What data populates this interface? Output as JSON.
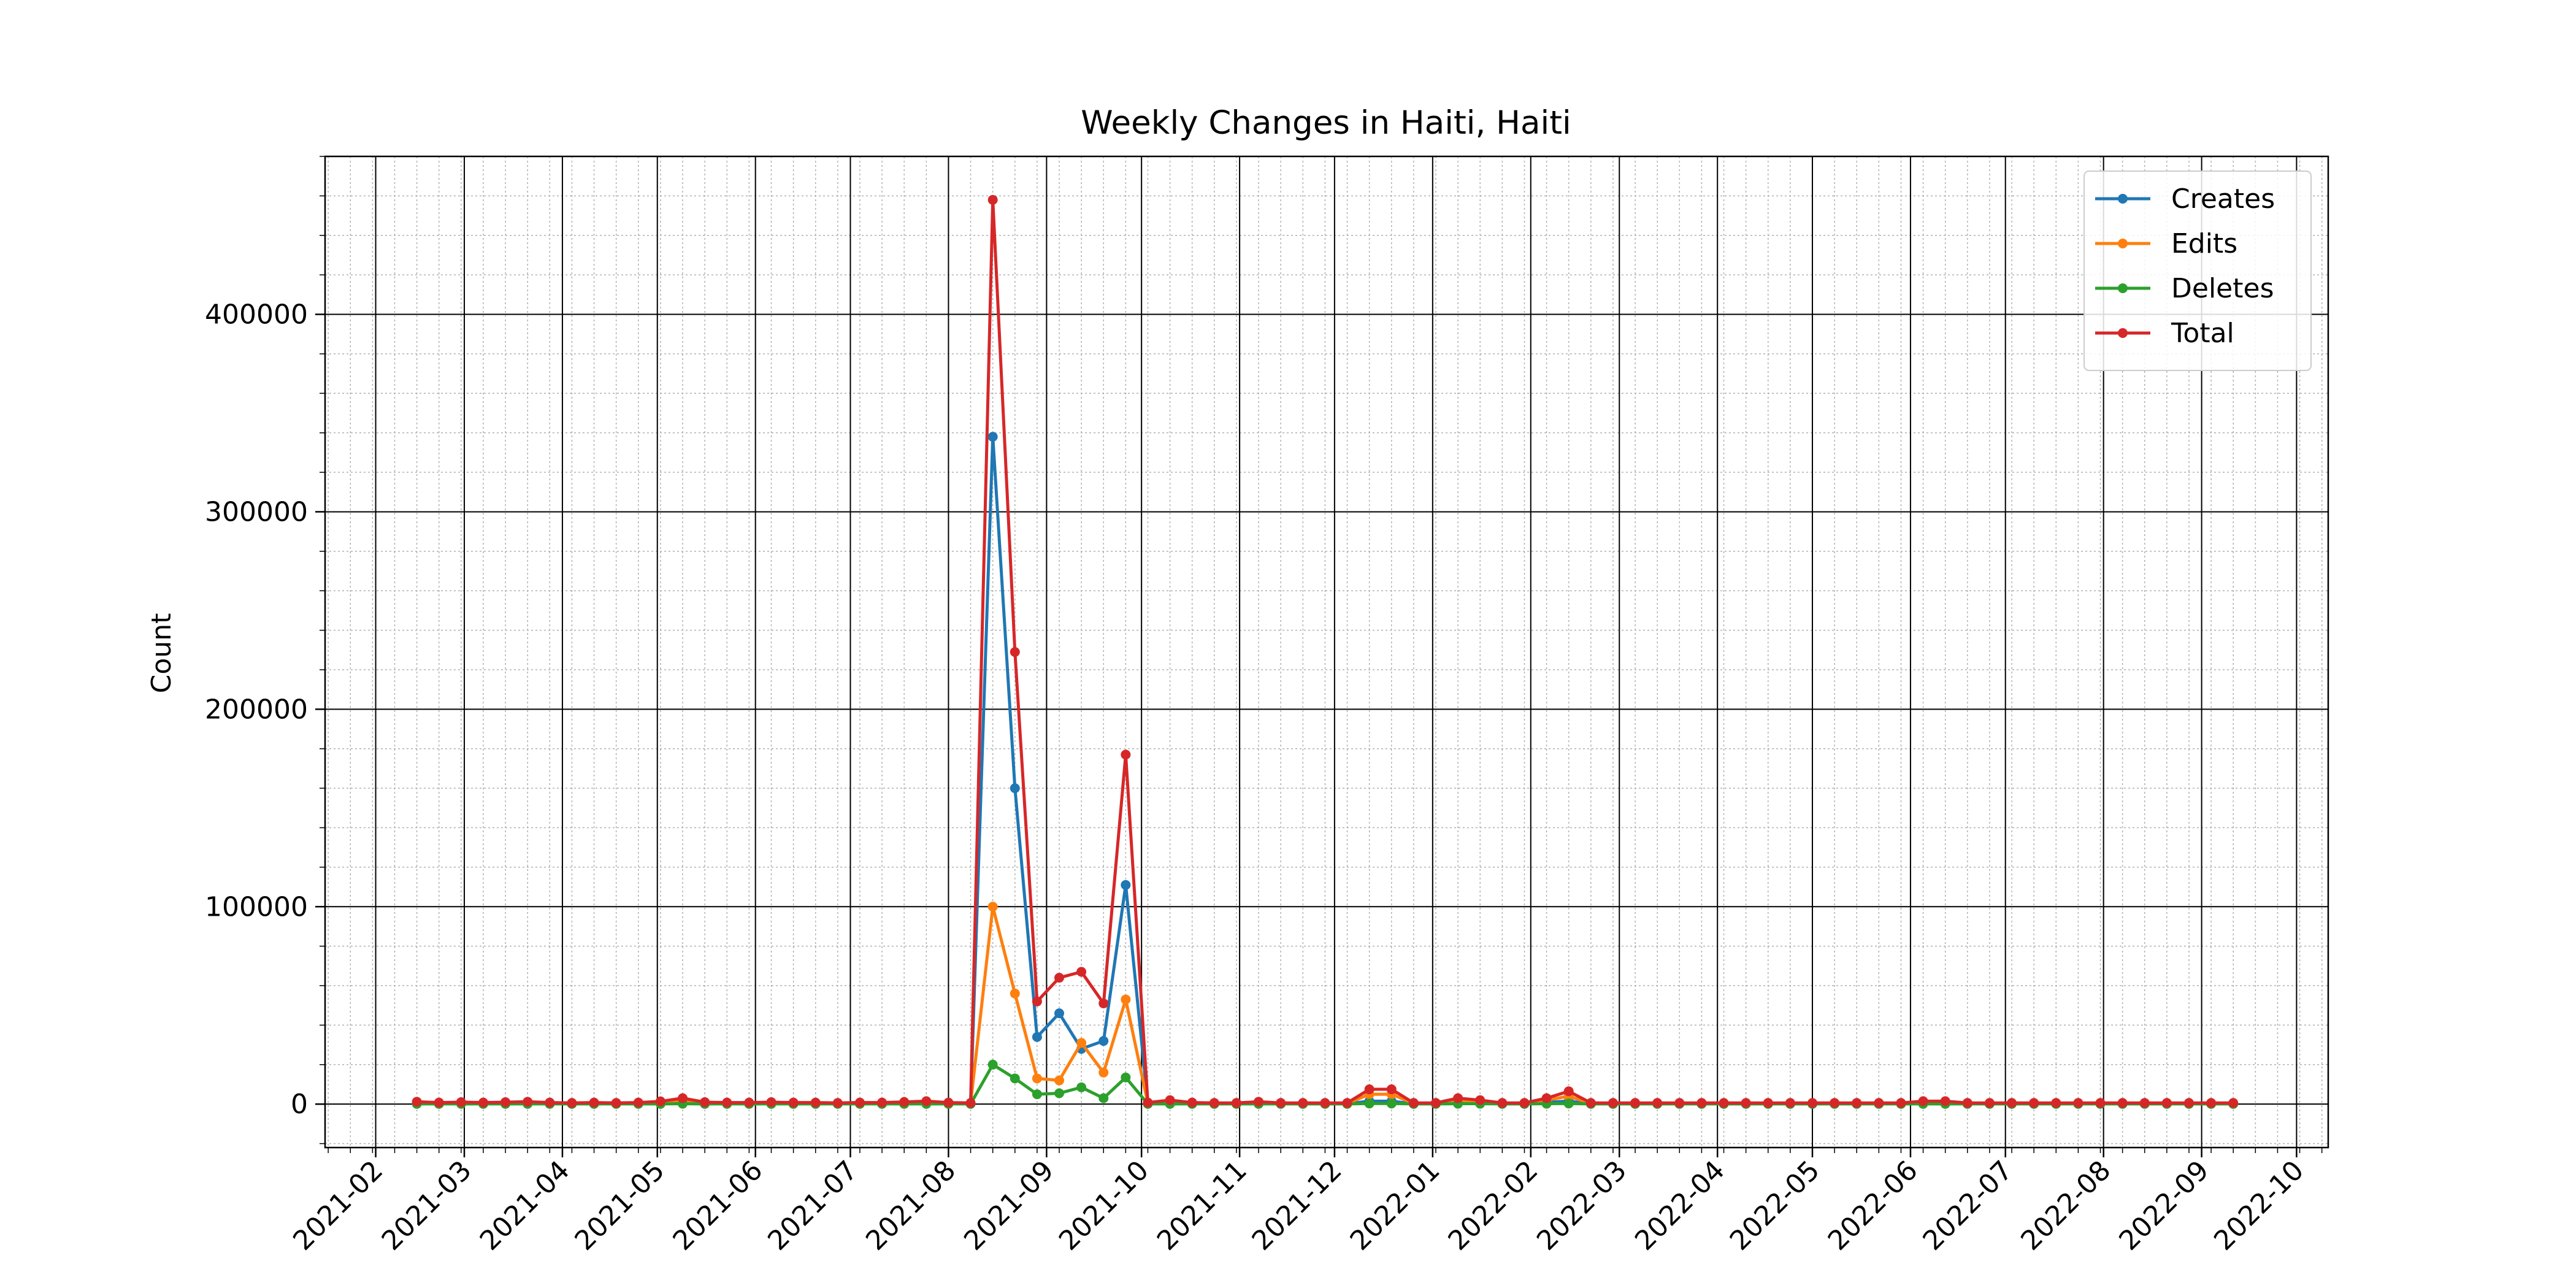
{
  "chart_data": {
    "type": "line",
    "title": "Weekly Changes in Haiti, Haiti",
    "xlabel": "",
    "ylabel": "Count",
    "x_type": "date",
    "xlim": [
      "2021-01-16",
      "2022-10-11"
    ],
    "ylim": [
      -22000,
      480000
    ],
    "x_ticks": [
      "2021-02",
      "2021-03",
      "2021-04",
      "2021-05",
      "2021-06",
      "2021-07",
      "2021-08",
      "2021-09",
      "2021-10",
      "2021-11",
      "2021-12",
      "2022-01",
      "2022-02",
      "2022-03",
      "2022-04",
      "2022-05",
      "2022-06",
      "2022-07",
      "2022-08",
      "2022-09",
      "2022-10"
    ],
    "y_ticks": [
      "0",
      "100000",
      "200000",
      "300000",
      "400000"
    ],
    "grid": "major and minor",
    "legend_position": "top-right",
    "x": [
      "2021-02-14",
      "2021-02-21",
      "2021-02-28",
      "2021-03-07",
      "2021-03-14",
      "2021-03-21",
      "2021-03-28",
      "2021-04-04",
      "2021-04-11",
      "2021-04-18",
      "2021-04-25",
      "2021-05-02",
      "2021-05-09",
      "2021-05-16",
      "2021-05-23",
      "2021-05-30",
      "2021-06-06",
      "2021-06-13",
      "2021-06-20",
      "2021-06-27",
      "2021-07-04",
      "2021-07-11",
      "2021-07-18",
      "2021-07-25",
      "2021-08-01",
      "2021-08-08",
      "2021-08-15",
      "2021-08-22",
      "2021-08-29",
      "2021-09-05",
      "2021-09-12",
      "2021-09-19",
      "2021-09-26",
      "2021-10-03",
      "2021-10-10",
      "2021-10-17",
      "2021-10-24",
      "2021-10-31",
      "2021-11-07",
      "2021-11-14",
      "2021-11-21",
      "2021-11-28",
      "2021-12-05",
      "2021-12-12",
      "2021-12-19",
      "2021-12-26",
      "2022-01-02",
      "2022-01-09",
      "2022-01-16",
      "2022-01-23",
      "2022-01-30",
      "2022-02-06",
      "2022-02-13",
      "2022-02-20",
      "2022-02-27",
      "2022-03-06",
      "2022-03-13",
      "2022-03-20",
      "2022-03-27",
      "2022-04-03",
      "2022-04-10",
      "2022-04-17",
      "2022-04-24",
      "2022-05-01",
      "2022-05-08",
      "2022-05-15",
      "2022-05-22",
      "2022-05-29",
      "2022-06-05",
      "2022-06-12",
      "2022-06-19",
      "2022-06-26",
      "2022-07-03",
      "2022-07-10",
      "2022-07-17",
      "2022-07-24",
      "2022-07-31",
      "2022-08-07",
      "2022-08-14",
      "2022-08-21",
      "2022-08-28",
      "2022-09-04",
      "2022-09-11"
    ],
    "series": [
      {
        "name": "Creates",
        "color": "#1f77b4",
        "values": [
          500,
          300,
          400,
          300,
          400,
          500,
          300,
          200,
          300,
          200,
          300,
          600,
          1200,
          400,
          300,
          300,
          400,
          300,
          300,
          200,
          300,
          300,
          400,
          600,
          300,
          200,
          338000,
          160000,
          34000,
          46000,
          28000,
          32000,
          111000,
          300,
          800,
          300,
          200,
          200,
          400,
          200,
          200,
          200,
          200,
          1500,
          1500,
          200,
          200,
          1000,
          800,
          200,
          200,
          1000,
          1500,
          200,
          200,
          200,
          200,
          200,
          200,
          200,
          200,
          200,
          200,
          200,
          200,
          200,
          200,
          200,
          500,
          500,
          200,
          200,
          200,
          200,
          200,
          200,
          200,
          200,
          200,
          200,
          200,
          200,
          200
        ]
      },
      {
        "name": "Edits",
        "color": "#ff7f0e",
        "values": [
          600,
          400,
          500,
          400,
          500,
          600,
          400,
          300,
          400,
          300,
          400,
          700,
          1500,
          500,
          400,
          400,
          500,
          400,
          400,
          300,
          400,
          400,
          600,
          800,
          400,
          300,
          100000,
          56000,
          13000,
          12000,
          31000,
          16000,
          53000,
          400,
          1000,
          400,
          300,
          300,
          700,
          300,
          300,
          300,
          300,
          5000,
          5000,
          300,
          300,
          1500,
          1000,
          300,
          300,
          2000,
          4000,
          300,
          300,
          300,
          300,
          300,
          300,
          300,
          300,
          300,
          300,
          300,
          300,
          300,
          300,
          300,
          800,
          800,
          300,
          300,
          300,
          300,
          300,
          300,
          300,
          300,
          300,
          300,
          300,
          300,
          300
        ]
      },
      {
        "name": "Deletes",
        "color": "#2ca02c",
        "values": [
          100,
          100,
          100,
          100,
          100,
          100,
          100,
          100,
          100,
          100,
          100,
          100,
          200,
          100,
          100,
          100,
          100,
          100,
          100,
          100,
          100,
          100,
          100,
          100,
          100,
          100,
          20000,
          13000,
          5000,
          5500,
          8500,
          3000,
          13500,
          100,
          100,
          100,
          100,
          100,
          100,
          100,
          100,
          100,
          100,
          300,
          300,
          100,
          100,
          200,
          200,
          100,
          100,
          200,
          300,
          100,
          100,
          100,
          100,
          100,
          100,
          100,
          100,
          100,
          100,
          100,
          100,
          100,
          100,
          100,
          100,
          100,
          100,
          100,
          100,
          100,
          100,
          100,
          100,
          100,
          100,
          100,
          100,
          100,
          100
        ]
      },
      {
        "name": "Total",
        "color": "#d62728",
        "values": [
          1200,
          800,
          1000,
          800,
          1000,
          1200,
          800,
          600,
          800,
          600,
          800,
          1400,
          3000,
          1000,
          800,
          800,
          1000,
          800,
          800,
          600,
          800,
          800,
          1100,
          1500,
          800,
          600,
          458000,
          229000,
          52000,
          64000,
          67000,
          51000,
          177000,
          800,
          2000,
          800,
          600,
          600,
          1200,
          600,
          600,
          600,
          600,
          7500,
          7500,
          600,
          600,
          3000,
          2000,
          600,
          600,
          3000,
          6500,
          600,
          600,
          600,
          600,
          600,
          600,
          600,
          600,
          600,
          600,
          600,
          600,
          600,
          600,
          600,
          1500,
          1500,
          600,
          600,
          600,
          600,
          600,
          600,
          600,
          600,
          600,
          600,
          600,
          600,
          600
        ]
      }
    ]
  }
}
